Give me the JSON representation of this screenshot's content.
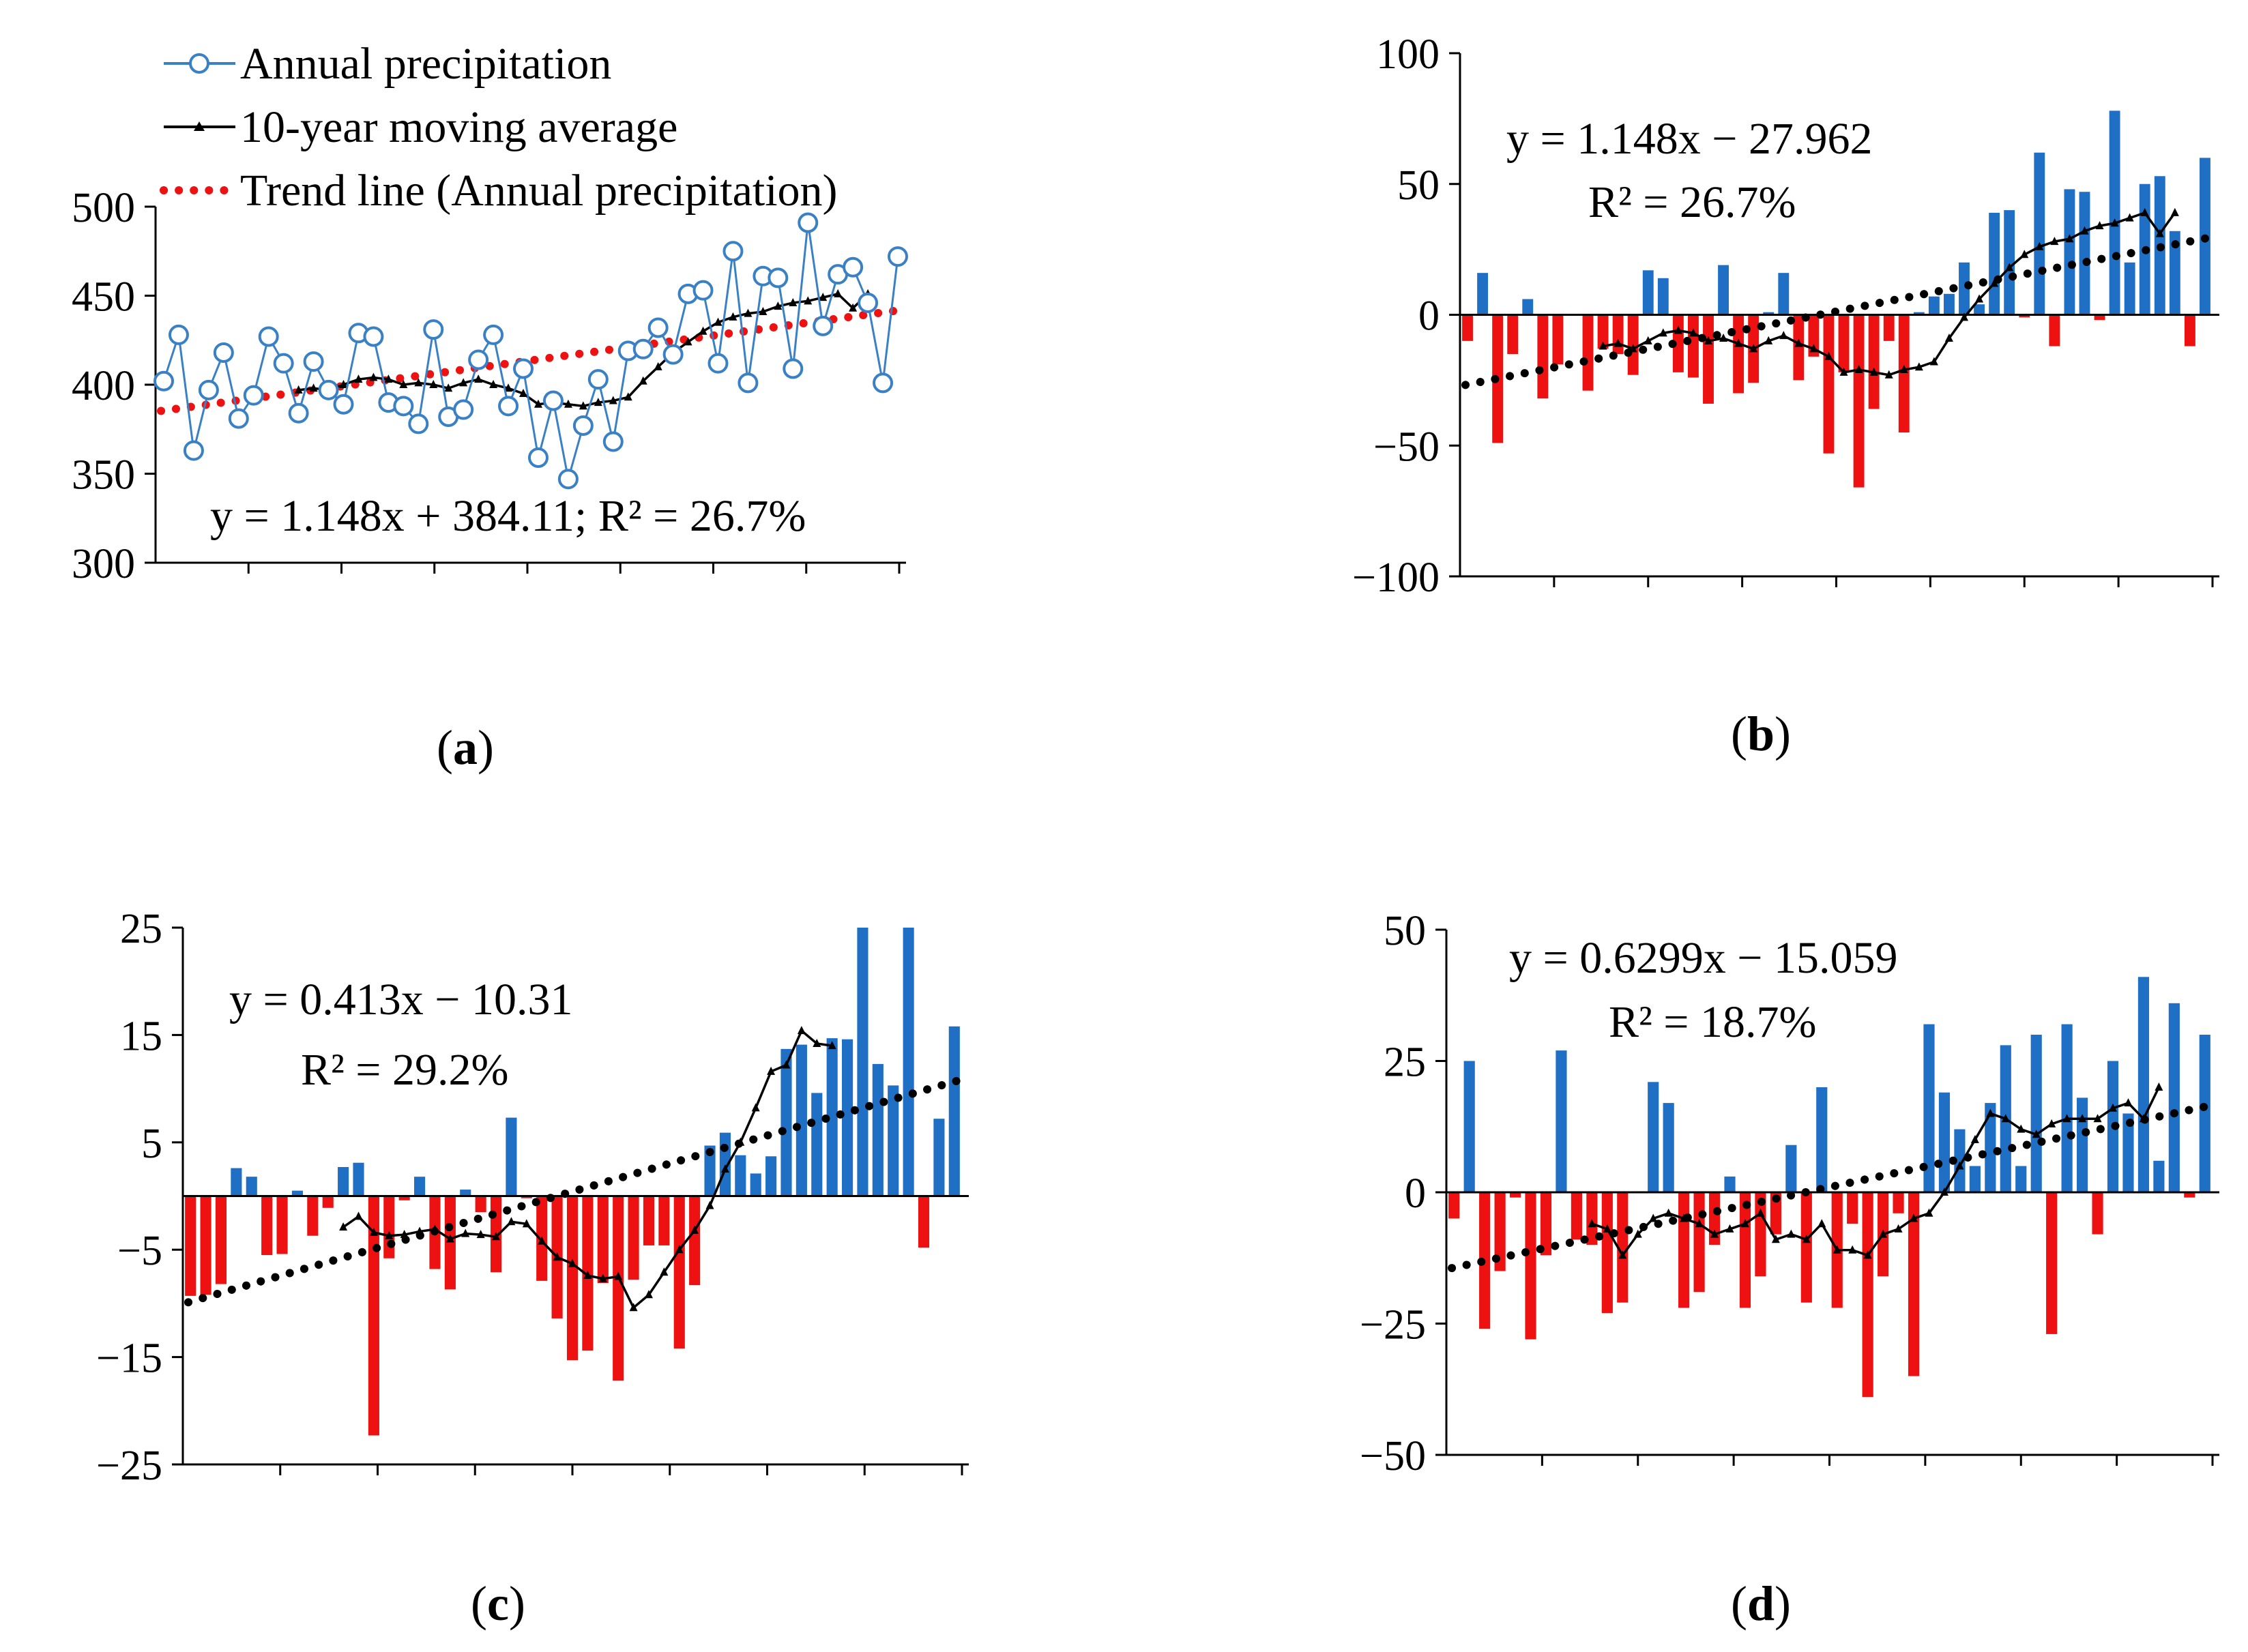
{
  "chart_data": [
    {
      "panel": "(a)",
      "type": "line",
      "yticks": [
        500,
        450,
        400,
        350,
        300
      ],
      "ylim": [
        300,
        500
      ],
      "equation": "y = 1.148x + 384.11; R² = 26.7%",
      "legend": {
        "annual": "Annual precipitation",
        "moving": "10-year moving average",
        "trend": "Trend line (Annual precipitation)"
      },
      "colors": {
        "annual": "#3a80c4",
        "moving": "#000000",
        "trend": "#ee1111"
      },
      "trend": {
        "slope": 1.148,
        "intercept": 384.11
      },
      "series": {
        "annual": [
          402,
          428,
          363,
          397,
          418,
          381,
          394,
          427,
          412,
          384,
          413,
          397,
          389,
          429,
          427,
          390,
          388,
          378,
          431,
          382,
          386,
          414,
          428,
          388,
          409,
          359,
          391,
          347,
          377,
          403,
          368,
          419,
          420,
          432,
          417,
          451,
          453,
          412,
          475,
          401,
          461,
          460,
          409,
          491,
          433,
          462,
          466,
          446,
          401,
          472
        ],
        "moving": [
          null,
          null,
          null,
          null,
          null,
          null,
          null,
          null,
          null,
          397,
          398,
          397,
          400,
          403,
          404,
          403,
          400,
          401,
          400,
          398,
          401,
          403,
          400,
          398,
          395,
          389,
          390,
          389,
          388,
          390,
          391,
          393,
          402,
          410,
          418,
          424,
          430,
          435,
          438,
          440,
          441,
          444,
          446,
          447,
          449,
          451,
          443,
          451,
          null,
          null
        ]
      }
    },
    {
      "panel": "(b)",
      "type": "bar",
      "yticks": [
        100,
        50,
        0,
        -50,
        -100
      ],
      "ylim": [
        -100,
        100
      ],
      "equation": "y = 1.148x − 27.962",
      "r2": "R² = 26.7%",
      "colors": {
        "positive": "#1f6fc5",
        "negative": "#ee1111",
        "line": "#000000"
      },
      "trend": {
        "slope": 1.148,
        "intercept": -27.962
      },
      "values": [
        -10,
        16,
        -49,
        -15,
        6,
        -32,
        -19,
        0,
        -29,
        -13,
        -15,
        -23,
        17,
        14,
        -22,
        -24,
        -34,
        19,
        -30,
        -26,
        1,
        16,
        -25,
        -16,
        -53,
        -22,
        -66,
        -36,
        -10,
        -45,
        1,
        7,
        8,
        20,
        4,
        39,
        40,
        -1,
        62,
        -12,
        48,
        47,
        -2,
        78,
        20,
        50,
        53,
        32,
        -12,
        60
      ],
      "moving": [
        null,
        null,
        null,
        null,
        null,
        null,
        null,
        null,
        null,
        -12,
        -11,
        -13,
        -10,
        -7,
        -6,
        -7,
        -10,
        -9,
        -11,
        -13,
        -10,
        -8,
        -11,
        -13,
        -16,
        -22,
        -21,
        -22,
        -23,
        -21,
        -20,
        -18,
        -9,
        -1,
        6,
        12,
        18,
        23,
        26,
        28,
        29,
        32,
        34,
        35,
        37,
        39,
        31,
        39,
        null,
        null
      ]
    },
    {
      "panel": "(c)",
      "type": "bar",
      "yticks": [
        25,
        15,
        5,
        -5,
        -15,
        -25
      ],
      "ylim": [
        -25,
        25
      ],
      "equation": "y = 0.413x − 10.31",
      "r2": "R² = 29.2%",
      "colors": {
        "positive": "#1f6fc5",
        "negative": "#ee1111",
        "line": "#000000"
      },
      "trend": {
        "slope": 0.413,
        "intercept": -10.31
      },
      "values": [
        -9.3,
        -9.2,
        -8.2,
        2.6,
        1.8,
        -5.5,
        -5.4,
        0.5,
        -3.7,
        -1.1,
        2.7,
        3.1,
        -22.3,
        -5.8,
        -0.4,
        1.8,
        -6.8,
        -8.7,
        0.6,
        -1.5,
        -7.1,
        7.3,
        -0.2,
        -7.9,
        -11.4,
        -15.3,
        -14.4,
        -8.1,
        -17.2,
        -7.8,
        -4.6,
        -4.6,
        -14.2,
        -8.3,
        4.7,
        5.9,
        3.8,
        2.1,
        3.7,
        13.7,
        14.1,
        9.6,
        14.7,
        14.6,
        25,
        12.3,
        10.3,
        25,
        -4.8,
        7.2,
        15.8
      ],
      "moving": [
        null,
        null,
        null,
        null,
        null,
        null,
        null,
        null,
        null,
        null,
        -2.9,
        -1.9,
        -3.4,
        -3.7,
        -3.6,
        -3.3,
        -3.1,
        -4.0,
        -3.5,
        -3.6,
        -3.8,
        -2.4,
        -2.6,
        -4.2,
        -5.7,
        -6.3,
        -7.4,
        -7.7,
        -7.5,
        -10.4,
        -9.2,
        -7.1,
        -5.0,
        -3.2,
        -0.9,
        2.5,
        5.0,
        8.2,
        11.6,
        12.2,
        15.4,
        14.2,
        14.0,
        null,
        null,
        null,
        null,
        null,
        null,
        null,
        null
      ]
    },
    {
      "panel": "(d)",
      "type": "bar",
      "yticks": [
        50,
        25,
        0,
        -25,
        -50
      ],
      "ylim": [
        -50,
        50
      ],
      "equation": "y = 0.6299x − 15.059",
      "r2": "R² = 18.7%",
      "colors": {
        "positive": "#1f6fc5",
        "negative": "#ee1111",
        "line": "#000000"
      },
      "trend": {
        "slope": 0.6299,
        "intercept": -15.059
      },
      "values": [
        -5,
        25,
        -26,
        -15,
        -1,
        -28,
        -12,
        27,
        -9,
        -10,
        -23,
        -21,
        0,
        21,
        17,
        -22,
        -19,
        -10,
        3,
        -22,
        -16,
        -8,
        9,
        -21,
        20,
        -22,
        -6,
        -39,
        -16,
        -4,
        -35,
        32,
        19,
        12,
        5,
        17,
        28,
        5,
        30,
        -27,
        32,
        18,
        -8,
        25,
        15,
        41,
        6,
        36,
        -1,
        30
      ],
      "moving": [
        null,
        null,
        null,
        null,
        null,
        null,
        null,
        null,
        null,
        -6,
        -7,
        -12,
        -8,
        -5,
        -4,
        -5,
        -6,
        -8,
        -7,
        -6,
        -4,
        -9,
        -8,
        -9,
        -6,
        -11,
        -11,
        -12,
        -8,
        -7,
        -5,
        -4,
        0,
        5,
        10,
        15,
        14,
        12,
        11,
        13,
        14,
        14,
        14,
        16,
        17,
        14,
        20,
        null,
        null,
        null
      ]
    }
  ],
  "panel_labels": {
    "a": {
      "open": "(",
      "letter": "a",
      "close": ")"
    },
    "b": {
      "open": "(",
      "letter": "b",
      "close": ")"
    },
    "c": {
      "open": "(",
      "letter": "c",
      "close": ")"
    },
    "d": {
      "open": "(",
      "letter": "d",
      "close": ")"
    }
  }
}
